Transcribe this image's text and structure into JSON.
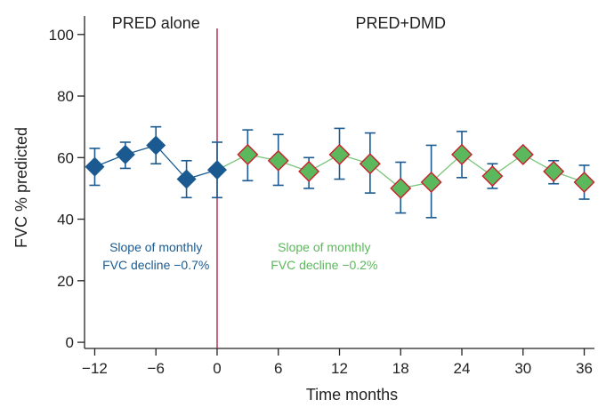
{
  "chart_data": {
    "type": "line",
    "title": "",
    "xlabel": "Time months",
    "ylabel": "FVC % predicted",
    "xlim": [
      -13,
      37
    ],
    "ylim": [
      -2,
      106
    ],
    "x_ticks": [
      -12,
      -6,
      0,
      6,
      12,
      18,
      24,
      30,
      36
    ],
    "x_tick_labels": [
      "−12",
      "−6",
      "0",
      "6",
      "12",
      "18",
      "24",
      "30",
      "36"
    ],
    "y_ticks": [
      0,
      20,
      40,
      60,
      80,
      100
    ],
    "y_tick_labels": [
      "0",
      "20",
      "40",
      "60",
      "80",
      "100"
    ],
    "grid": false,
    "vertical_line": {
      "x": 0,
      "color": "#b5234a"
    },
    "phase_labels": [
      {
        "text": "PRED alone",
        "x": -6
      },
      {
        "text": "PRED+DMD",
        "x": 18
      }
    ],
    "series": [
      {
        "name": "PRED alone",
        "color": "#1a5a91",
        "marker": "diamond",
        "points": [
          {
            "x": -12,
            "y": 57,
            "lo": 51,
            "hi": 63
          },
          {
            "x": -9,
            "y": 61,
            "lo": 56.5,
            "hi": 65
          },
          {
            "x": -6,
            "y": 64,
            "lo": 58,
            "hi": 70
          },
          {
            "x": -3,
            "y": 53,
            "lo": 47,
            "hi": 59
          },
          {
            "x": 0,
            "y": 56,
            "lo": 47,
            "hi": 65
          }
        ]
      },
      {
        "name": "PRED+DMD",
        "color": "#5cb85c",
        "marker": "diamond",
        "marker_edge": "#c8202c",
        "line_color": "#7cc47c",
        "error_color": "#1a5a91",
        "points": [
          {
            "x": 0,
            "y": 56,
            "lo": 47,
            "hi": 65,
            "skip_marker": true
          },
          {
            "x": 3,
            "y": 61,
            "lo": 52.5,
            "hi": 69
          },
          {
            "x": 6,
            "y": 59,
            "lo": 51,
            "hi": 67.5
          },
          {
            "x": 9,
            "y": 55.5,
            "lo": 50,
            "hi": 60
          },
          {
            "x": 12,
            "y": 61,
            "lo": 53,
            "hi": 69.5
          },
          {
            "x": 15,
            "y": 58,
            "lo": 48.5,
            "hi": 68
          },
          {
            "x": 18,
            "y": 50,
            "lo": 42,
            "hi": 58.5
          },
          {
            "x": 21,
            "y": 52,
            "lo": 40.5,
            "hi": 64
          },
          {
            "x": 24,
            "y": 61,
            "lo": 53.5,
            "hi": 68.5
          },
          {
            "x": 27,
            "y": 54,
            "lo": 50,
            "hi": 58
          },
          {
            "x": 30,
            "y": 61,
            "lo": 60,
            "hi": 62
          },
          {
            "x": 33,
            "y": 55.5,
            "lo": 51.5,
            "hi": 59
          },
          {
            "x": 36,
            "y": 52,
            "lo": 46.5,
            "hi": 57.5
          }
        ]
      }
    ],
    "annotations": [
      {
        "lines": [
          "Slope of monthly",
          "FVC decline −0.7%"
        ],
        "x": -6,
        "y": 29.5,
        "color": "#1a5a91"
      },
      {
        "lines": [
          "Slope of monthly",
          "FVC decline −0.2%"
        ],
        "x": 10.5,
        "y": 29.5,
        "color": "#5cb85c"
      }
    ]
  }
}
